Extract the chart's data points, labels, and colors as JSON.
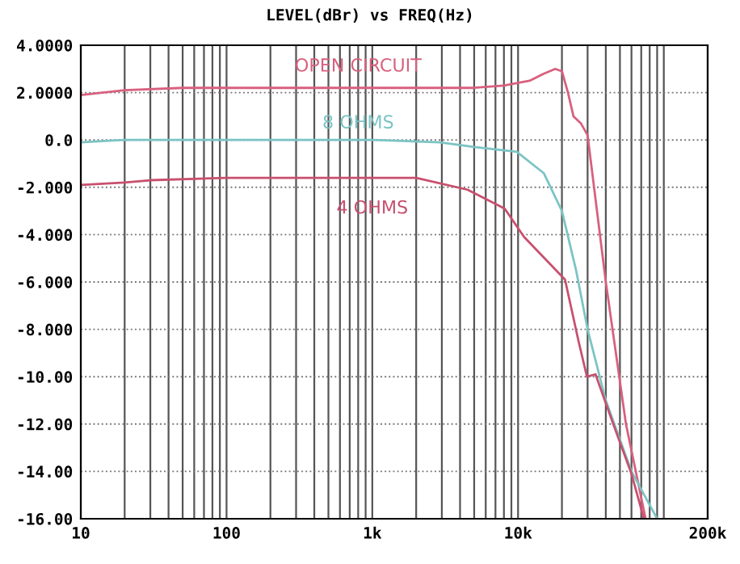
{
  "chart_data": {
    "type": "line",
    "title": "LEVEL(dBr) vs FREQ(Hz)",
    "log": "x",
    "grid": true,
    "legend": false,
    "marker": "none",
    "line_style": "solid",
    "xlim": [
      10,
      200000
    ],
    "ylim": [
      -16,
      4
    ],
    "xticks": [
      {
        "value": 10,
        "label": "10"
      },
      {
        "value": 20,
        "label": null
      },
      {
        "value": 30,
        "label": null
      },
      {
        "value": 40,
        "label": null
      },
      {
        "value": 50,
        "label": null
      },
      {
        "value": 60,
        "label": null
      },
      {
        "value": 70,
        "label": null
      },
      {
        "value": 80,
        "label": null
      },
      {
        "value": 90,
        "label": null
      },
      {
        "value": 100,
        "label": "100"
      },
      {
        "value": 200,
        "label": null
      },
      {
        "value": 300,
        "label": null
      },
      {
        "value": 400,
        "label": null
      },
      {
        "value": 500,
        "label": null
      },
      {
        "value": 600,
        "label": null
      },
      {
        "value": 700,
        "label": null
      },
      {
        "value": 800,
        "label": null
      },
      {
        "value": 900,
        "label": null
      },
      {
        "value": 1000,
        "label": "1k"
      },
      {
        "value": 2000,
        "label": null
      },
      {
        "value": 3000,
        "label": null
      },
      {
        "value": 4000,
        "label": null
      },
      {
        "value": 5000,
        "label": null
      },
      {
        "value": 6000,
        "label": null
      },
      {
        "value": 7000,
        "label": null
      },
      {
        "value": 8000,
        "label": null
      },
      {
        "value": 9000,
        "label": null
      },
      {
        "value": 10000,
        "label": "10k"
      },
      {
        "value": 20000,
        "label": null
      },
      {
        "value": 30000,
        "label": null
      },
      {
        "value": 40000,
        "label": null
      },
      {
        "value": 50000,
        "label": null
      },
      {
        "value": 60000,
        "label": null
      },
      {
        "value": 70000,
        "label": null
      },
      {
        "value": 80000,
        "label": null
      },
      {
        "value": 90000,
        "label": null
      },
      {
        "value": 100000,
        "label": null
      },
      {
        "value": 200000,
        "label": "200k"
      }
    ],
    "yticks": [
      {
        "value": 4,
        "label": "4.0000"
      },
      {
        "value": 2,
        "label": "2.0000"
      },
      {
        "value": 0,
        "label": "0.0"
      },
      {
        "value": -2,
        "label": "-2.000"
      },
      {
        "value": -4,
        "label": "-4.000"
      },
      {
        "value": -6,
        "label": "-6.000"
      },
      {
        "value": -8,
        "label": "-8.000"
      },
      {
        "value": -10,
        "label": "-10.00"
      },
      {
        "value": -12,
        "label": "-12.00"
      },
      {
        "value": -14,
        "label": "-14.00"
      },
      {
        "value": -16,
        "label": "-16.00"
      }
    ],
    "series": [
      {
        "name": "OPEN CIRCUIT",
        "color": "#d8607e",
        "x": [
          10,
          20,
          50,
          100,
          1000,
          5000,
          8000,
          12000,
          15000,
          18000,
          20000,
          22000,
          24000,
          27000,
          30000,
          40000,
          55000,
          75000
        ],
        "values": [
          1.9,
          2.1,
          2.2,
          2.2,
          2.2,
          2.2,
          2.3,
          2.5,
          2.8,
          3.0,
          2.9,
          2.0,
          1.0,
          0.7,
          0.2,
          -6,
          -12,
          -16
        ]
      },
      {
        "name": "8 OHMS",
        "color": "#7cc4c4",
        "x": [
          10,
          20,
          100,
          1000,
          2900,
          5000,
          9800,
          15000,
          20000,
          25000,
          30000,
          40000,
          60000,
          90000
        ],
        "values": [
          -0.1,
          0,
          0,
          0,
          -0.1,
          -0.3,
          -0.5,
          -1.4,
          -3.0,
          -5.5,
          -8,
          -11,
          -14,
          -16
        ]
      },
      {
        "name": "4 OHMS",
        "color": "#c8506e",
        "x": [
          10,
          20,
          30,
          100,
          1000,
          2000,
          4500,
          8100,
          11000,
          21000,
          26000,
          29700,
          34000,
          45000,
          60000,
          73000
        ],
        "values": [
          -1.9,
          -1.8,
          -1.7,
          -1.6,
          -1.6,
          -1.6,
          -2.1,
          -2.9,
          -4.1,
          -5.9,
          -8.5,
          -10.0,
          -9.9,
          -12,
          -14.1,
          -16
        ]
      }
    ]
  }
}
